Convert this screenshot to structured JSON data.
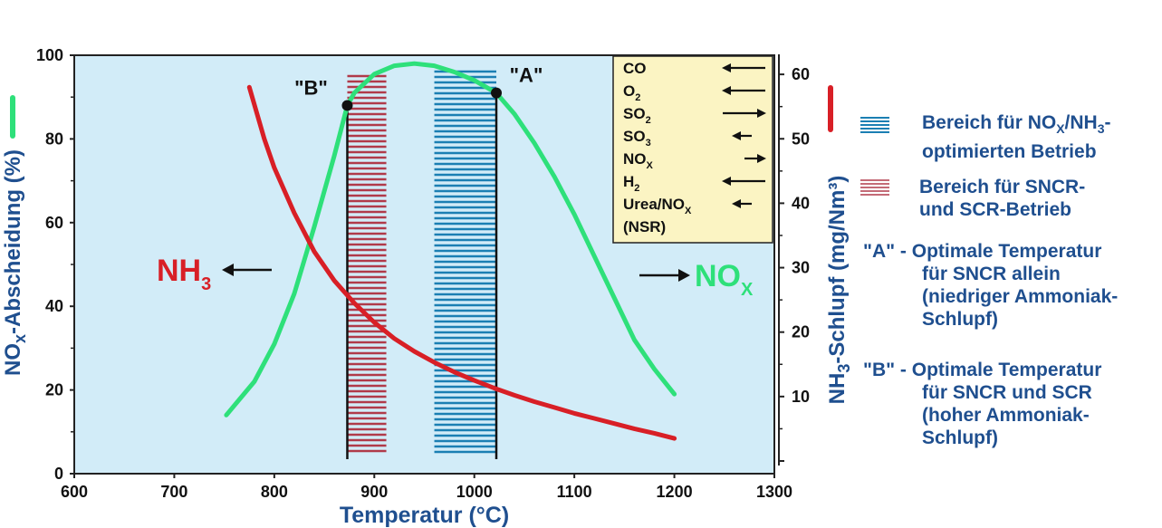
{
  "chart_data": {
    "type": "line",
    "xlabel": "Temperatur (°C)",
    "xlim": [
      600,
      1300
    ],
    "xticks": [
      600,
      700,
      800,
      900,
      1000,
      1100,
      1200,
      1300
    ],
    "y_left": {
      "label_parts": [
        "NO",
        "x",
        "-Abscheidung (%)"
      ],
      "lim": [
        0,
        100
      ],
      "ticks": [
        0,
        20,
        40,
        60,
        80,
        100
      ]
    },
    "y_right": {
      "label_parts": [
        "NH",
        "3",
        "-Schlupf (mg/Nm³)"
      ],
      "lim": [
        0,
        61
      ],
      "ticks": [
        10,
        20,
        30,
        40,
        50,
        60
      ]
    },
    "series": [
      {
        "name": "NOx",
        "color": "#2ee07a",
        "axis": "left",
        "x": [
          752,
          780,
          800,
          820,
          840,
          860,
          873,
          880,
          900,
          920,
          940,
          960,
          980,
          1000,
          1022,
          1040,
          1060,
          1080,
          1100,
          1120,
          1140,
          1160,
          1180,
          1200
        ],
        "y": [
          14,
          22,
          31,
          43,
          59,
          76,
          88,
          91,
          95.5,
          97.5,
          98,
          97.5,
          96,
          94,
          91,
          86,
          79,
          71,
          62,
          52,
          42,
          32,
          25,
          19
        ]
      },
      {
        "name": "NH3",
        "color": "#d81f26",
        "axis": "right",
        "x": [
          775,
          790,
          800,
          820,
          840,
          860,
          880,
          900,
          920,
          940,
          960,
          980,
          1000,
          1020,
          1040,
          1060,
          1080,
          1100,
          1120,
          1140,
          1160,
          1180,
          1200
        ],
        "y": [
          58,
          50,
          45.5,
          38.5,
          32.5,
          28,
          24.5,
          21.5,
          19,
          17,
          15.3,
          13.8,
          12.5,
          11.3,
          10.2,
          9.2,
          8.3,
          7.4,
          6.6,
          5.8,
          5.0,
          4.3,
          3.5
        ]
      }
    ],
    "bands": [
      {
        "name": "SNCR/SCR",
        "x0": 873,
        "x1": 912,
        "color": "#b03a4a"
      },
      {
        "name": "NOx/NH3",
        "x0": 960,
        "x1": 1022,
        "color": "#1b7fb3"
      }
    ],
    "points": [
      {
        "label": "\"B\"",
        "x": 873,
        "y": 88
      },
      {
        "label": "\"A\"",
        "x": 1022,
        "y": 91
      }
    ],
    "series_labels": {
      "nh3": {
        "main": "NH",
        "sub": "3",
        "color": "#d81f26"
      },
      "nox": {
        "main": "NO",
        "sub": "X",
        "color": "#2ee07a"
      }
    },
    "effects_box": {
      "items": [
        {
          "main": "CO",
          "sub": "",
          "arrow": "left-long"
        },
        {
          "main": "O",
          "sub": "2",
          "arrow": "left-long"
        },
        {
          "main": "SO",
          "sub": "2",
          "arrow": "right-long"
        },
        {
          "main": "SO",
          "sub": "3",
          "arrow": "left-short"
        },
        {
          "main": "NO",
          "sub": "X",
          "arrow": "right-short"
        },
        {
          "main": "H",
          "sub": "2",
          "arrow": "left-long"
        },
        {
          "main": "Urea/NO",
          "sub": "X",
          "arrow": "left-short"
        },
        {
          "main": "(NSR)",
          "sub": "",
          "arrow": "none"
        }
      ]
    },
    "colors": {
      "plot_bg": "#d2ecf8",
      "axis_text": "#1f4f8f",
      "box_bg": "#fbf4c3",
      "nox_marker": "#2ee07a",
      "nh3_marker": "#d81f26"
    }
  },
  "legend": {
    "band_blue": {
      "line1_a": "Bereich für NO",
      "line1_sub": "X",
      "line1_b": "/NH",
      "line1_sub2": "3",
      "line1_c": "-",
      "line2": "optimierten Betrieb"
    },
    "band_red": {
      "line1": "Bereich für SNCR-",
      "line2": "und SCR-Betrieb"
    },
    "point_a": {
      "line1": "\"A\" - Optimale Temperatur",
      "line2": "für SNCR allein",
      "line3": "(niedriger Ammoniak-",
      "line4": "Schlupf)"
    },
    "point_b": {
      "line1": "\"B\" - Optimale Temperatur",
      "line2": "für SNCR und SCR",
      "line3": "(hoher Ammoniak-",
      "line4": "Schlupf)"
    }
  }
}
